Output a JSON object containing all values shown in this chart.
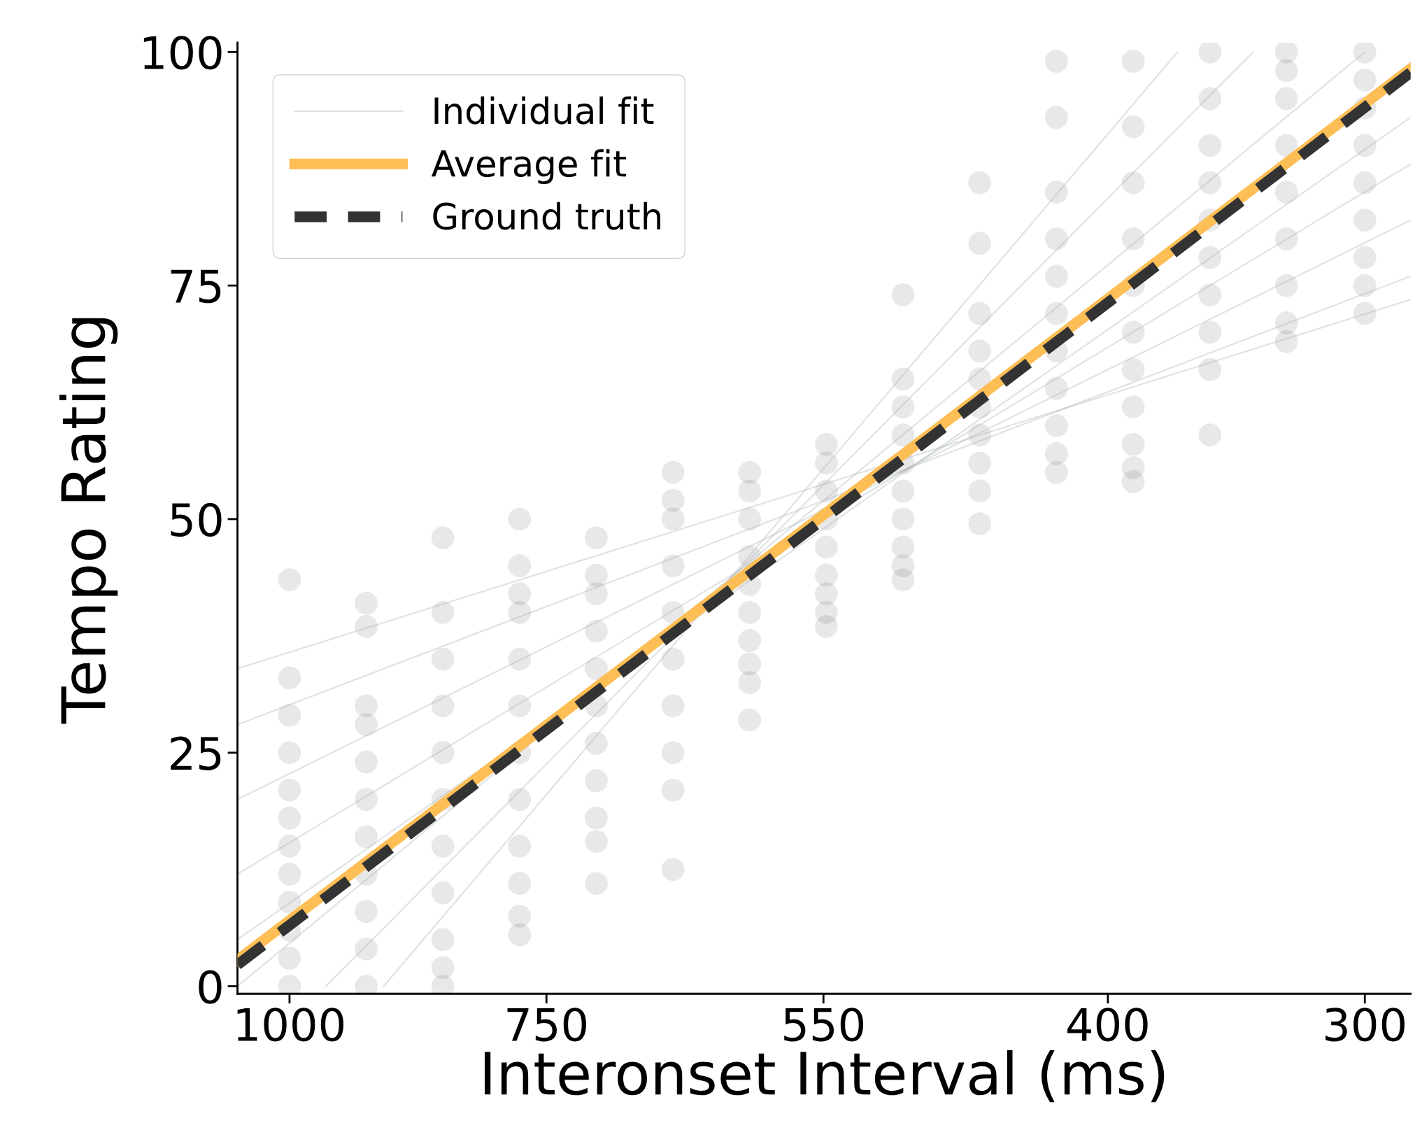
{
  "chart_data": {
    "type": "scatter",
    "xlabel": "Interonset Interval (ms)",
    "ylabel": "Tempo Rating",
    "log": "x",
    "xlim": [
      1060,
      285
    ],
    "ylim": [
      -0.8,
      101
    ],
    "xticks": [
      1000,
      750,
      550,
      400,
      300
    ],
    "yticks": [
      0,
      25,
      50,
      75,
      100
    ],
    "grid": false,
    "legend": "top left",
    "series": [
      {
        "type": "scatter",
        "marker": "circle",
        "color": "#000000",
        "x": [
          1000,
          1000,
          1000,
          1000,
          1000,
          1000,
          1000,
          1000,
          1000,
          1000,
          1000,
          1000,
          917.7,
          917.7,
          917.7,
          917.7,
          917.7,
          917.7,
          917.7,
          917.7,
          917.7,
          917.7,
          917.7,
          842.2,
          842.2,
          842.2,
          842.2,
          842.2,
          842.2,
          842.2,
          842.2,
          842.2,
          842.2,
          842.2,
          772.9,
          772.9,
          772.9,
          772.9,
          772.9,
          772.9,
          772.9,
          772.9,
          772.9,
          772.9,
          772.9,
          772.9,
          709.3,
          709.3,
          709.3,
          709.3,
          709.3,
          709.3,
          709.3,
          709.3,
          709.3,
          709.3,
          709.3,
          650.9,
          650.9,
          650.9,
          650.9,
          650.9,
          650.9,
          650.9,
          650.9,
          650.9,
          650.9,
          597.4,
          597.4,
          597.4,
          597.4,
          597.4,
          597.4,
          597.4,
          597.4,
          597.4,
          597.4,
          548.2,
          548.2,
          548.2,
          548.2,
          548.2,
          548.2,
          548.2,
          548.2,
          548.2,
          503.1,
          503.1,
          503.1,
          503.1,
          503.1,
          503.1,
          503.1,
          503.1,
          503.1,
          503.1,
          461.7,
          461.7,
          461.7,
          461.7,
          461.7,
          461.7,
          461.7,
          461.7,
          461.7,
          461.7,
          423.7,
          423.7,
          423.7,
          423.7,
          423.7,
          423.7,
          423.7,
          423.7,
          423.7,
          423.7,
          423.7,
          388.8,
          388.8,
          388.8,
          388.8,
          388.8,
          388.8,
          388.8,
          388.8,
          388.8,
          388.8,
          388.8,
          356.8,
          356.8,
          356.8,
          356.8,
          356.8,
          356.8,
          356.8,
          356.8,
          356.8,
          356.8,
          327.5,
          327.5,
          327.5,
          327.5,
          327.5,
          327.5,
          327.5,
          327.5,
          327.5,
          300,
          300,
          300,
          300,
          300,
          300,
          300,
          300,
          300
        ],
        "values": [
          0,
          3,
          6,
          9,
          12,
          15,
          18,
          21,
          25,
          29,
          33,
          43.5,
          0,
          4,
          8,
          12,
          16,
          20,
          24,
          28,
          30,
          38.5,
          41,
          0,
          2,
          5,
          10,
          15,
          20,
          25,
          30,
          35,
          40,
          48,
          5.5,
          7.5,
          11,
          15,
          20,
          25,
          30,
          35,
          40,
          42,
          45,
          50,
          11,
          15.5,
          18,
          22,
          26,
          30,
          34,
          38,
          42,
          44,
          48,
          12.5,
          21,
          25,
          30,
          35,
          40,
          45,
          50,
          52,
          55,
          28.5,
          32.5,
          34.5,
          37,
          40,
          43,
          46,
          50,
          53,
          55,
          38.5,
          40,
          42,
          44,
          47,
          50,
          53,
          56,
          58,
          43.5,
          45,
          47,
          50,
          53,
          56,
          59,
          62,
          65,
          74,
          49.5,
          53,
          56,
          59,
          62,
          65,
          68,
          72,
          79.5,
          86,
          55,
          57,
          60,
          64,
          68,
          72,
          76,
          80,
          85,
          93,
          99,
          54,
          55.5,
          58,
          62,
          66,
          70,
          75,
          80,
          86,
          92,
          99,
          59,
          66,
          70,
          74,
          78,
          82,
          86,
          90,
          95,
          100,
          69,
          71,
          75,
          80,
          85,
          90,
          95,
          98,
          100,
          72,
          75,
          78,
          82,
          86,
          90,
          94,
          97,
          100
        ]
      },
      {
        "type": "line",
        "name": "Individual fit",
        "color": "#a7afb3",
        "x": [
          1060,
          285
        ],
        "values": [
          34,
          73.5
        ]
      },
      {
        "type": "line",
        "color": "#a7afb3",
        "x": [
          1060,
          285
        ],
        "values": [
          28,
          76
        ]
      },
      {
        "type": "line",
        "color": "#a7afb3",
        "x": [
          1060,
          285
        ],
        "values": [
          20,
          82
        ]
      },
      {
        "type": "line",
        "color": "#a7afb3",
        "x": [
          1060,
          285
        ],
        "values": [
          12,
          88
        ]
      },
      {
        "type": "line",
        "color": "#a7afb3",
        "x": [
          1060,
          285
        ],
        "values": [
          5,
          93
        ]
      },
      {
        "type": "line",
        "color": "#a7afb3",
        "x": [
          1060,
          300
        ],
        "values": [
          0,
          100
        ]
      },
      {
        "type": "line",
        "color": "#a7afb3",
        "x": [
          960,
          340
        ],
        "values": [
          0,
          100
        ]
      },
      {
        "type": "line",
        "color": "#a7afb3",
        "x": [
          900,
          370
        ],
        "values": [
          0,
          100
        ]
      },
      {
        "type": "line",
        "name": "Average fit",
        "color": "#fdbe55",
        "x": [
          1060,
          285
        ],
        "values": [
          2.8,
          98.2
        ]
      },
      {
        "type": "line",
        "name": "Ground truth",
        "color": "#333333",
        "line_style": "dashed",
        "x": [
          1060,
          285
        ],
        "values": [
          2.3,
          97.8
        ]
      }
    ]
  }
}
